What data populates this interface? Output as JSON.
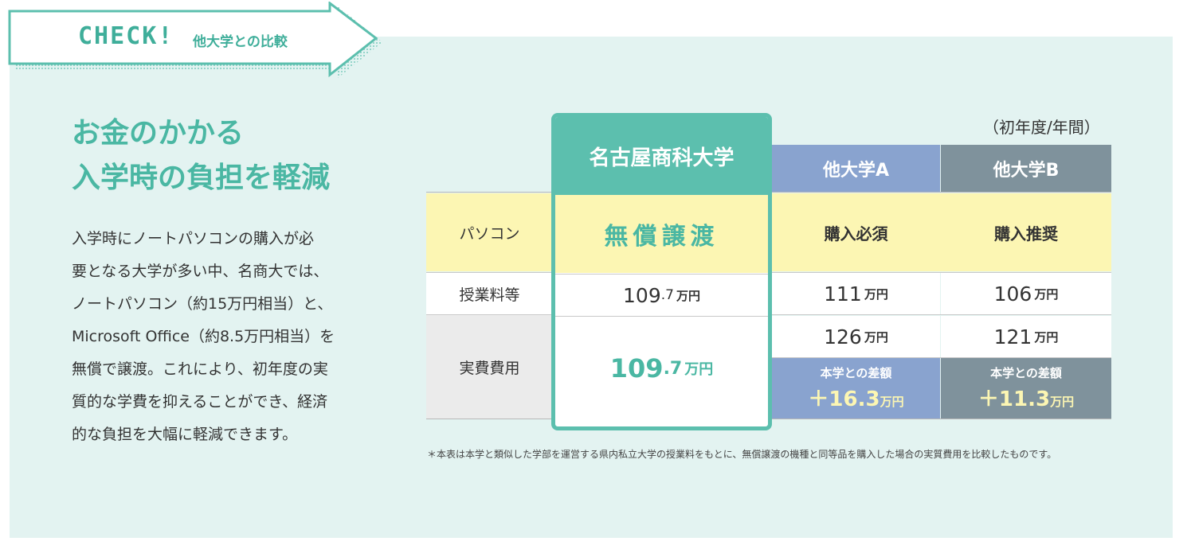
{
  "banner": {
    "check": "CHECK!",
    "subtitle": "他大学との比較"
  },
  "headline": {
    "line1": "お金のかかる",
    "line2": "入学時の負担を軽減"
  },
  "body_lines": [
    "入学時にノートパソコンの購入が必",
    "要となる大学が多い中、名商大では、",
    "ノートパソコン（約15万円相当）と、",
    "Microsoft Office（約8.5万円相当）を",
    "無償で譲渡。これにより、初年度の実",
    "質的な学費を抑えることができ、経済",
    "的な負担を大幅に軽減できます。"
  ],
  "table": {
    "unit_note": "（初年度/年間）",
    "row_labels": {
      "pc": "パソコン",
      "fee": "授業料等",
      "real": "実費費用"
    },
    "main": {
      "name": "名古屋商科大学",
      "pc": "無償譲渡",
      "fee_num": "109",
      "fee_dec": ".7",
      "fee_unit": "万円",
      "real_num": "109",
      "real_dec": ".7",
      "real_unit": "万円"
    },
    "uni_a": {
      "name": "他大学A",
      "pc": "購入必須",
      "fee_num": "111",
      "fee_unit": "万円",
      "real_num": "126",
      "real_unit": "万円",
      "diff_label": "本学との差額",
      "diff_value": "＋16.3",
      "diff_unit": "万円"
    },
    "uni_b": {
      "name": "他大学B",
      "pc": "購入推奨",
      "fee_num": "106",
      "fee_unit": "万円",
      "real_num": "121",
      "real_unit": "万円",
      "diff_label": "本学との差額",
      "diff_value": "＋11.3",
      "diff_unit": "万円"
    }
  },
  "footnote": "＊本表は本学と類似した学部を運営する県内私立大学の授業料をもとに、無償譲渡の機種と同等品を購入した場合の実質費用を比較したものです。",
  "colors": {
    "teal": "#5cbfae",
    "teal_text": "#4ab7a3",
    "yellow": "#fcf6b3",
    "blue": "#89a3cf",
    "slate": "#7f929c",
    "panel": "#e3f3f1"
  }
}
